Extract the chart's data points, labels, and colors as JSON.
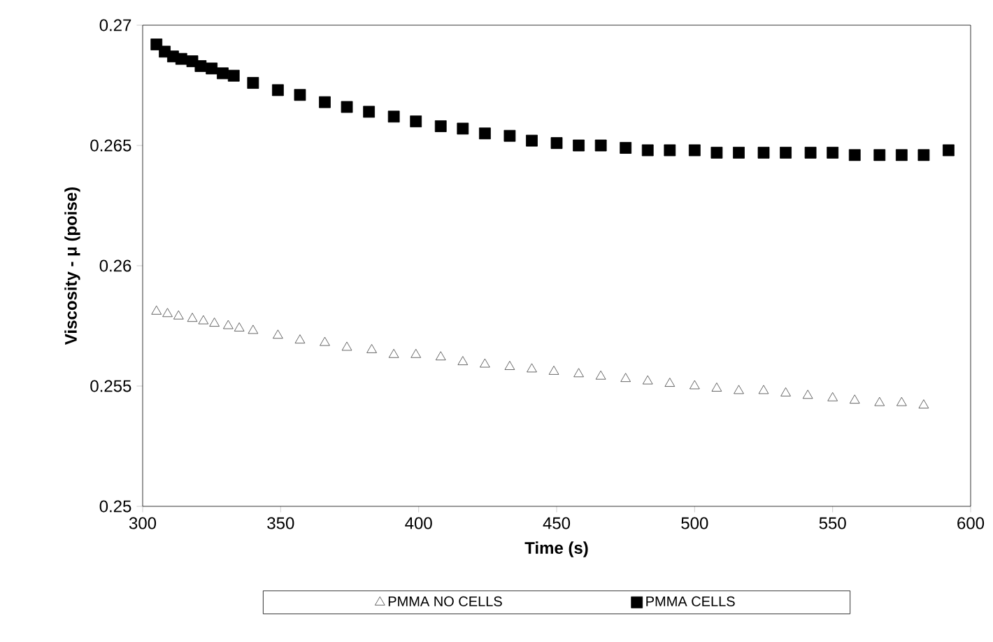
{
  "chart_data": {
    "type": "scatter",
    "xlabel": "Time (s)",
    "ylabel": "Viscosity - μ (poise)",
    "xlim": [
      300,
      600
    ],
    "ylim": [
      0.25,
      0.27
    ],
    "xticks": [
      300,
      350,
      400,
      450,
      500,
      550,
      600
    ],
    "yticks": [
      0.25,
      0.255,
      0.26,
      0.265,
      0.27
    ],
    "grid": false,
    "legend": "bottom",
    "series": [
      {
        "name": "PMMA NO CELLS",
        "color": "#404040",
        "marker": "triangle",
        "x": [
          305,
          309,
          313,
          318,
          322,
          326,
          331,
          335,
          340,
          349,
          357,
          366,
          374,
          383,
          391,
          399,
          408,
          416,
          424,
          433,
          441,
          449,
          458,
          466,
          475,
          483,
          491,
          500,
          508,
          516,
          525,
          533,
          541,
          550,
          558,
          567,
          575,
          583
        ],
        "values": [
          0.2581,
          0.258,
          0.2579,
          0.2578,
          0.2577,
          0.2576,
          0.2575,
          0.2574,
          0.2573,
          0.2571,
          0.2569,
          0.2568,
          0.2566,
          0.2565,
          0.2563,
          0.2563,
          0.2562,
          0.256,
          0.2559,
          0.2558,
          0.2557,
          0.2556,
          0.2555,
          0.2554,
          0.2553,
          0.2552,
          0.2551,
          0.255,
          0.2549,
          0.2548,
          0.2548,
          0.2547,
          0.2546,
          0.2545,
          0.2544,
          0.2543,
          0.2543,
          0.2542
        ]
      },
      {
        "name": "PMMA CELLS",
        "color": "#000000",
        "marker": "square",
        "x": [
          305,
          308,
          311,
          314,
          318,
          321,
          325,
          329,
          333,
          340,
          349,
          357,
          366,
          374,
          382,
          391,
          399,
          408,
          416,
          424,
          433,
          441,
          450,
          458,
          466,
          475,
          483,
          491,
          500,
          508,
          516,
          525,
          533,
          542,
          550,
          558,
          567,
          575,
          583,
          592
        ],
        "values": [
          0.2692,
          0.2689,
          0.2687,
          0.2686,
          0.2685,
          0.2683,
          0.2682,
          0.268,
          0.2679,
          0.2676,
          0.2673,
          0.2671,
          0.2668,
          0.2666,
          0.2664,
          0.2662,
          0.266,
          0.2658,
          0.2657,
          0.2655,
          0.2654,
          0.2652,
          0.2651,
          0.265,
          0.265,
          0.2649,
          0.2648,
          0.2648,
          0.2648,
          0.2647,
          0.2647,
          0.2647,
          0.2647,
          0.2647,
          0.2647,
          0.2646,
          0.2646,
          0.2646,
          0.2646,
          0.2648
        ]
      }
    ]
  }
}
